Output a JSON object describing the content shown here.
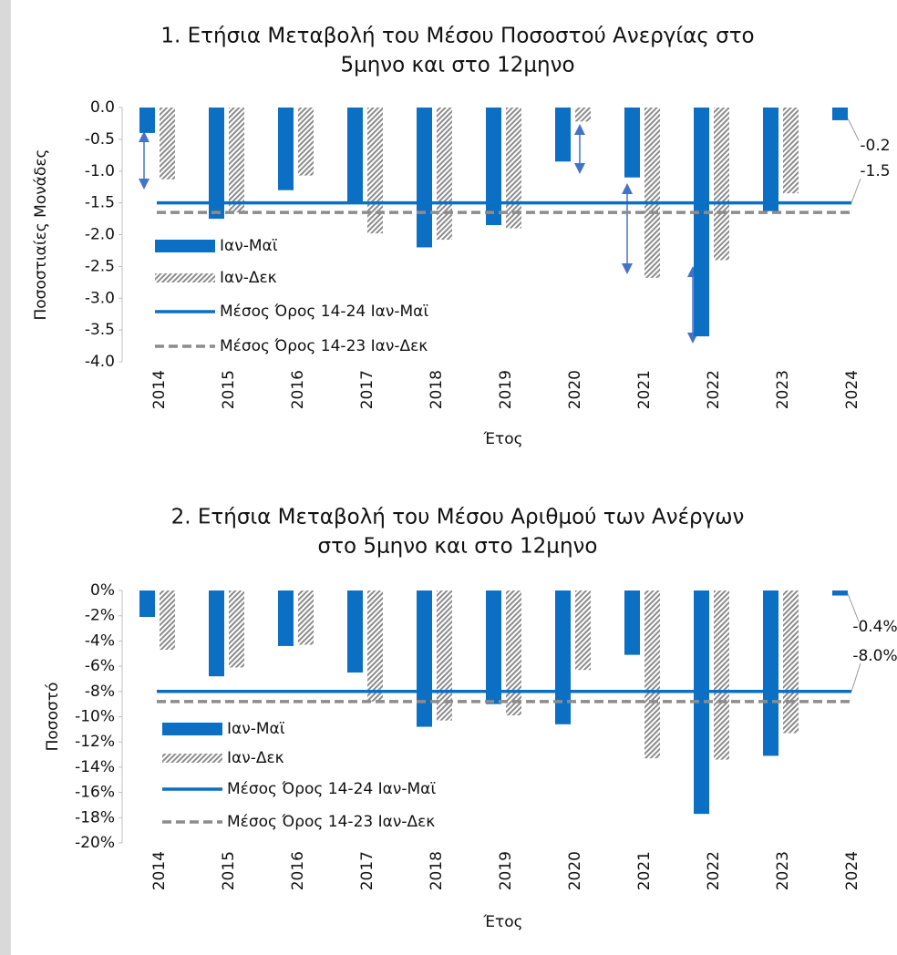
{
  "chart_data": [
    {
      "type": "bar",
      "title": [
        "1. Ετήσια Μεταβολή του Μέσου Ποσοστού Ανεργίας στο",
        "5μηνο και στο 12μηνο"
      ],
      "y_label": "Ποσοστιαίες Μονάδες",
      "x_label": "Έτος",
      "categories": [
        "2014",
        "2015",
        "2016",
        "2017",
        "2018",
        "2019",
        "2020",
        "2021",
        "2022",
        "2023",
        "2024"
      ],
      "series": [
        {
          "name": "Ιαν-Μαϊ",
          "color": "#0b6fc4",
          "pattern": "solid",
          "values": [
            -0.4,
            -1.75,
            -1.3,
            -1.5,
            -2.2,
            -1.85,
            -0.85,
            -1.1,
            -3.6,
            -1.63,
            -0.2
          ],
          "value_labels": [
            null,
            null,
            null,
            null,
            null,
            null,
            null,
            null,
            null,
            null,
            "-0.2"
          ]
        },
        {
          "name": "Ιαν-Δεκ",
          "color": "#8c8c8c",
          "pattern": "hatch",
          "values": [
            -1.13,
            -1.65,
            -1.07,
            -1.98,
            -2.08,
            -1.9,
            -0.22,
            -2.68,
            -2.4,
            -1.35,
            null
          ]
        }
      ],
      "reference_lines": [
        {
          "name": "Μέσος Όρος 14-24 Ιαν-Μαϊ",
          "color": "#0b6fc4",
          "dashed": false,
          "value": -1.5,
          "label": "-1.5"
        },
        {
          "name": "Μέσος Όρος 14-23 Ιαν-Δεκ",
          "color": "#8c8c8c",
          "dashed": true,
          "value": -1.65
        }
      ],
      "ylim": [
        -4,
        0
      ],
      "yticks": [
        {
          "value": 0,
          "label": "0.0"
        },
        -0.5,
        {
          "value": -1,
          "label": "-1.0"
        },
        -1.5,
        {
          "value": -2,
          "label": "-2.0"
        },
        -2.5,
        {
          "value": -3,
          "label": "-3.0"
        },
        -3.5,
        {
          "value": -4,
          "label": "-4.0"
        }
      ],
      "grid": false
    },
    {
      "type": "bar",
      "title": [
        "2. Ετήσια Μεταβολή του Μέσου Αριθμού των Ανέργων",
        "στο 5μηνο και στο 12μηνο"
      ],
      "y_label": "Ποσοστό",
      "x_label": "Έτος",
      "categories": [
        "2014",
        "2015",
        "2016",
        "2017",
        "2018",
        "2019",
        "2020",
        "2021",
        "2022",
        "2023",
        "2024"
      ],
      "series": [
        {
          "name": "Ιαν-Μαϊ",
          "color": "#0b6fc4",
          "pattern": "solid",
          "values": [
            -2.1,
            -6.8,
            -4.4,
            -6.5,
            -10.8,
            -9.0,
            -10.6,
            -5.1,
            -17.7,
            -13.1,
            -0.4
          ],
          "value_labels": [
            null,
            null,
            null,
            null,
            null,
            null,
            null,
            null,
            null,
            null,
            "-0.4%"
          ]
        },
        {
          "name": "Ιαν-Δεκ",
          "color": "#8c8c8c",
          "pattern": "hatch",
          "values": [
            -4.7,
            -6.1,
            -4.3,
            -8.8,
            -10.3,
            -9.9,
            -6.3,
            -13.3,
            -13.4,
            -11.3,
            null
          ]
        }
      ],
      "reference_lines": [
        {
          "name": "Μέσος Όρος 14-24 Ιαν-Μαϊ",
          "color": "#0b6fc4",
          "dashed": false,
          "value": -8.0,
          "label": "-8.0%"
        },
        {
          "name": "Μέσος Όρος 14-23 Ιαν-Δεκ",
          "color": "#8c8c8c",
          "dashed": true,
          "value": -8.8
        }
      ],
      "ylim": [
        -20,
        0
      ],
      "yticks": [
        {
          "value": 0,
          "label": "0%"
        },
        {
          "value": -2,
          "label": "-2%"
        },
        {
          "value": -4,
          "label": "-4%"
        },
        {
          "value": -6,
          "label": "-6%"
        },
        {
          "value": -8,
          "label": "-8%"
        },
        {
          "value": -10,
          "label": "-10%"
        },
        {
          "value": -12,
          "label": "-12%"
        },
        {
          "value": -14,
          "label": "-14%"
        },
        {
          "value": -16,
          "label": "-16%"
        },
        {
          "value": -18,
          "label": "-18%"
        },
        {
          "value": -20,
          "label": "-20%"
        }
      ],
      "grid": false
    }
  ]
}
